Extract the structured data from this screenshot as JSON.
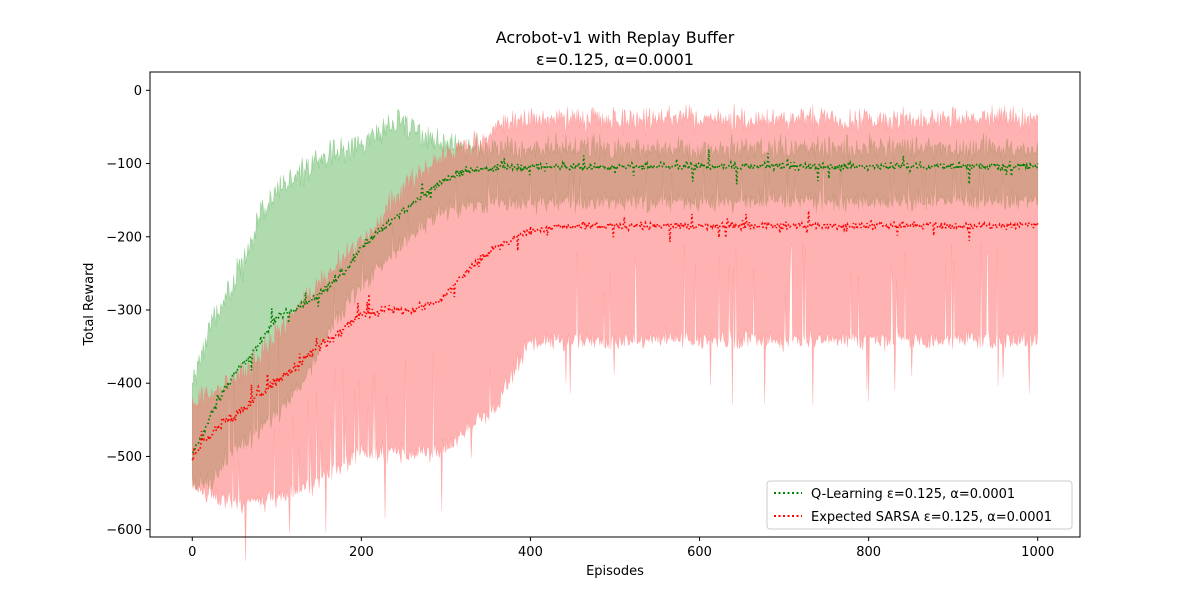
{
  "chart_data": {
    "type": "line",
    "title_line1": "Acrobot-v1 with Replay Buffer",
    "title_line2": "ε=0.125, α=0.0001",
    "xlabel": "Episodes",
    "ylabel": "Total Reward",
    "xlim": [
      -50,
      1050
    ],
    "ylim": [
      -610,
      25
    ],
    "xticks": [
      0,
      200,
      400,
      600,
      800,
      1000
    ],
    "xtick_labels": [
      "0",
      "200",
      "400",
      "600",
      "800",
      "1000"
    ],
    "yticks": [
      0,
      -100,
      -200,
      -300,
      -400,
      -500,
      -600
    ],
    "ytick_labels": [
      "0",
      "−100",
      "−200",
      "−300",
      "−400",
      "−500",
      "−600"
    ],
    "grid": false,
    "legend_position": "lower-right",
    "series": [
      {
        "name": "Q-Learning ε=0.125, α=0.0001",
        "color": "#008000",
        "band_color": "#2ca02c",
        "mean_anchors": {
          "x": [
            0,
            10,
            20,
            30,
            45,
            60,
            80,
            100,
            130,
            160,
            180,
            200,
            230,
            260,
            290,
            320,
            350,
            400,
            1000
          ],
          "y": [
            -495,
            -478,
            -450,
            -425,
            -395,
            -375,
            -345,
            -310,
            -295,
            -270,
            -248,
            -215,
            -185,
            -155,
            -128,
            -112,
            -106,
            -104,
            -104
          ]
        },
        "upper_anchors": {
          "x": [
            0,
            20,
            40,
            60,
            80,
            100,
            130,
            160,
            200,
            230,
            250,
            270,
            300,
            340,
            400,
            1000
          ],
          "y": [
            -400,
            -330,
            -280,
            -240,
            -170,
            -135,
            -110,
            -90,
            -75,
            -55,
            -45,
            -60,
            -75,
            -80,
            -80,
            -80
          ]
        },
        "lower_anchors": {
          "x": [
            0,
            20,
            40,
            60,
            80,
            100,
            130,
            160,
            190,
            230,
            270,
            300,
            340,
            400,
            1000
          ],
          "y": [
            -540,
            -535,
            -505,
            -480,
            -460,
            -440,
            -400,
            -330,
            -280,
            -230,
            -185,
            -160,
            -155,
            -152,
            -150
          ]
        }
      },
      {
        "name": "Expected SARSA ε=0.125, α=0.0001",
        "color": "#ff0000",
        "band_color": "#ff6666",
        "mean_anchors": {
          "x": [
            0,
            10,
            30,
            50,
            70,
            90,
            110,
            130,
            150,
            170,
            200,
            230,
            260,
            290,
            310,
            330,
            360,
            390,
            430,
            1000
          ],
          "y": [
            -500,
            -485,
            -460,
            -445,
            -425,
            -405,
            -390,
            -370,
            -350,
            -335,
            -305,
            -300,
            -300,
            -290,
            -265,
            -240,
            -215,
            -195,
            -185,
            -185
          ]
        },
        "upper_anchors": {
          "x": [
            0,
            30,
            60,
            100,
            140,
            180,
            220,
            260,
            290,
            320,
            340,
            370,
            400,
            1000
          ],
          "y": [
            -420,
            -410,
            -390,
            -330,
            -280,
            -230,
            -180,
            -120,
            -95,
            -80,
            -70,
            -45,
            -40,
            -40
          ]
        },
        "lower_anchors": {
          "x": [
            0,
            30,
            60,
            100,
            140,
            170,
            200,
            260,
            300,
            330,
            360,
            400,
            1000
          ],
          "y": [
            -540,
            -555,
            -565,
            -555,
            -540,
            -515,
            -495,
            -495,
            -490,
            -455,
            -430,
            -340,
            -340
          ]
        }
      }
    ]
  }
}
